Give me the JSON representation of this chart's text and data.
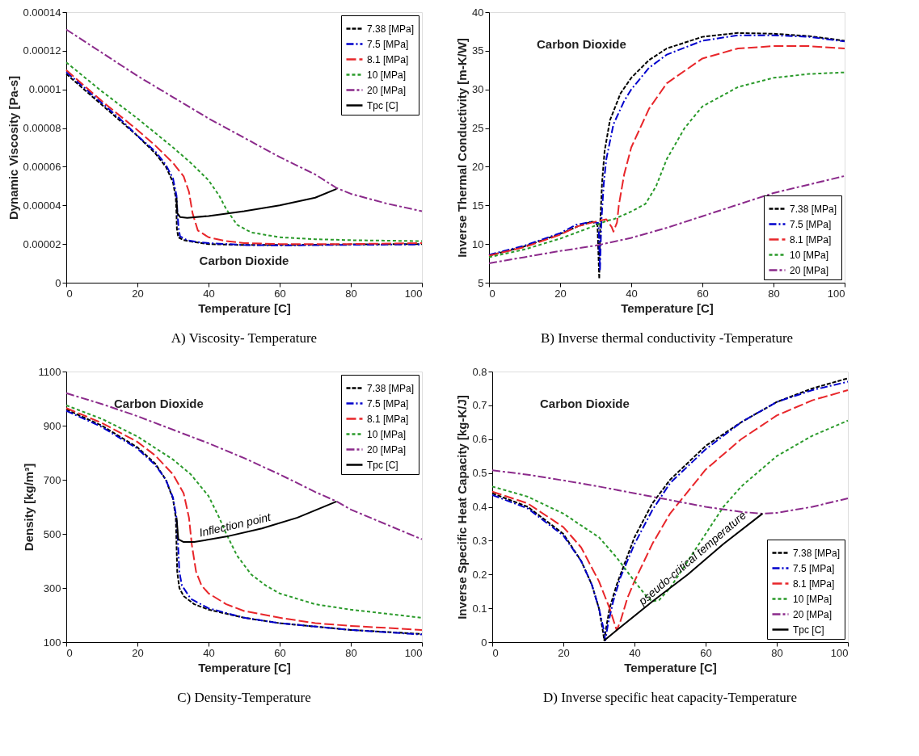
{
  "chart_data": [
    {
      "type": "line",
      "title": "A) Viscosity- Temperature",
      "xlabel": "Temperature  [C]",
      "ylabel": "Dynamic Viscosity [Pa-s]",
      "xlim": [
        0,
        100
      ],
      "xticks": [
        0,
        20,
        40,
        60,
        80,
        100
      ],
      "ylim": [
        0,
        0.00014
      ],
      "yticks": [
        0,
        {
          "value": 2e-05,
          "label": "0.00002"
        },
        {
          "value": 4e-05,
          "label": "0.00004"
        },
        {
          "value": 6e-05,
          "label": "0.00006"
        },
        {
          "value": 8e-05,
          "label": "0.00008"
        },
        0.0001,
        0.00012,
        0.00014
      ],
      "legend": "top right",
      "annotations": [
        "Carbon Dioxide"
      ],
      "series": [
        {
          "name": "7.38 [MPa]",
          "color": "#000000",
          "line_style": "dashed",
          "x": [
            0,
            5,
            10,
            15,
            20,
            25,
            28,
            30,
            30.8,
            31,
            31.1,
            31.5,
            33,
            36,
            40,
            50,
            60,
            80,
            100
          ],
          "values": [
            0.000108,
            0.0001,
            9.2e-05,
            8.4e-05,
            7.6e-05,
            6.7e-05,
            6e-05,
            5.2e-05,
            4.4e-05,
            3.5e-05,
            2.8e-05,
            2.35e-05,
            2.2e-05,
            2.1e-05,
            2e-05,
            1.95e-05,
            1.95e-05,
            1.98e-05,
            2e-05
          ]
        },
        {
          "name": "7.5 [MPa]",
          "color": "#0000cc",
          "line_style": "dashed",
          "x": [
            0,
            5,
            10,
            15,
            20,
            25,
            28,
            30,
            31,
            31.3,
            31.6,
            32,
            34,
            37,
            40,
            50,
            60,
            80,
            100
          ],
          "values": [
            0.000109,
            0.000101,
            9.3e-05,
            8.5e-05,
            7.6e-05,
            6.8e-05,
            6.1e-05,
            5.4e-05,
            4.5e-05,
            3.5e-05,
            2.8e-05,
            2.4e-05,
            2.2e-05,
            2.1e-05,
            2.05e-05,
            1.95e-05,
            1.93e-05,
            1.96e-05,
            1.98e-05
          ]
        },
        {
          "name": "8.1 [MPa]",
          "color": "#e8262a",
          "line_style": "dashed",
          "x": [
            0,
            10,
            20,
            25,
            30,
            33,
            34.5,
            35.5,
            37,
            40,
            45,
            50,
            60,
            80,
            100
          ],
          "values": [
            0.00011,
            9.4e-05,
            7.9e-05,
            7.1e-05,
            6.2e-05,
            5.5e-05,
            4.7e-05,
            3.6e-05,
            2.7e-05,
            2.35e-05,
            2.15e-05,
            2.05e-05,
            2e-05,
            2e-05,
            2.05e-05
          ]
        },
        {
          "name": "10 [MPa]",
          "color": "#2a9a2a",
          "line_style": "dashed",
          "x": [
            0,
            10,
            20,
            30,
            35,
            40,
            43,
            45,
            48,
            52,
            60,
            70,
            80,
            100
          ],
          "values": [
            0.000114,
            9.9e-05,
            8.5e-05,
            7e-05,
            6.2e-05,
            5.3e-05,
            4.5e-05,
            3.8e-05,
            3e-05,
            2.6e-05,
            2.35e-05,
            2.25e-05,
            2.2e-05,
            2.15e-05
          ]
        },
        {
          "name": "20 [MPa]",
          "color": "#8b2a8b",
          "line_style": "dashed",
          "x": [
            0,
            10,
            20,
            30,
            40,
            50,
            60,
            70,
            76,
            80,
            90,
            100
          ],
          "values": [
            0.000131,
            0.000119,
            0.000107,
            9.6e-05,
            8.5e-05,
            7.5e-05,
            6.5e-05,
            5.6e-05,
            4.9e-05,
            4.6e-05,
            4.1e-05,
            3.7e-05
          ]
        },
        {
          "name": "Tpc [C]",
          "color": "#000000",
          "line_style": "solid",
          "x": [
            31,
            31.2,
            32,
            34,
            40,
            50,
            60,
            70,
            76
          ],
          "values": [
            4.4e-05,
            3.6e-05,
            3.4e-05,
            3.35e-05,
            3.45e-05,
            3.7e-05,
            4e-05,
            4.4e-05,
            4.85e-05
          ]
        }
      ]
    },
    {
      "type": "line",
      "title": "B) Inverse thermal conductivity -Temperature",
      "xlabel": "Temperature  [C]",
      "ylabel": "Inverse Thermal Conductivity [m-K/W]",
      "xlim": [
        0,
        100
      ],
      "xticks": [
        0,
        20,
        40,
        60,
        80,
        100
      ],
      "ylim": [
        5,
        40
      ],
      "yticks": [
        5,
        10,
        15,
        20,
        25,
        30,
        35,
        40
      ],
      "legend": "bottom right",
      "annotations": [
        "Carbon Dioxide"
      ],
      "series": [
        {
          "name": "7.38 [MPa]",
          "color": "#000000",
          "line_style": "dashed",
          "x": [
            0,
            10,
            20,
            25,
            29,
            30.5,
            31,
            31.3,
            31.8,
            32.5,
            34,
            37,
            40,
            45,
            50,
            60,
            70,
            80,
            90,
            100
          ],
          "values": [
            8.5,
            9.7,
            11.3,
            12.3,
            12.9,
            12.5,
            5.5,
            13,
            18,
            22,
            26,
            29.5,
            31.5,
            33.8,
            35.3,
            36.8,
            37.3,
            37.2,
            36.9,
            36.3
          ]
        },
        {
          "name": "7.5 [MPa]",
          "color": "#0000cc",
          "line_style": "dashed",
          "x": [
            0,
            10,
            20,
            24.5,
            29,
            30.8,
            31.2,
            31.6,
            32.3,
            33,
            35,
            38,
            40,
            45,
            50,
            60,
            70,
            80,
            90,
            100
          ],
          "values": [
            8.6,
            9.8,
            11.4,
            12.5,
            12.9,
            12.7,
            6.5,
            13,
            18,
            21,
            25.5,
            28.5,
            30,
            32.8,
            34.5,
            36.3,
            37,
            37,
            36.8,
            36.2
          ]
        },
        {
          "name": "8.1 [MPa]",
          "color": "#e8262a",
          "line_style": "dashed",
          "x": [
            0,
            10,
            20,
            25,
            30,
            33,
            34.5,
            35,
            36,
            36.5,
            38,
            40,
            45,
            50,
            60,
            70,
            80,
            90,
            100
          ],
          "values": [
            8.5,
            9.6,
            11.2,
            12.3,
            12.9,
            13.2,
            12.2,
            11.6,
            12.8,
            15,
            19,
            22.5,
            27.5,
            30.8,
            34,
            35.3,
            35.6,
            35.6,
            35.3
          ]
        },
        {
          "name": "10 [MPa]",
          "color": "#2a9a2a",
          "line_style": "dashed",
          "x": [
            0,
            10,
            20,
            30,
            33,
            35,
            40,
            44,
            47,
            50,
            55,
            60,
            70,
            80,
            90,
            100
          ],
          "values": [
            8.3,
            9.3,
            10.7,
            12.4,
            13,
            13.2,
            14.2,
            15.2,
            17.5,
            21,
            25,
            27.8,
            30.3,
            31.5,
            32,
            32.2
          ]
        },
        {
          "name": "20 [MPa]",
          "color": "#8b2a8b",
          "line_style": "dashed",
          "x": [
            0,
            10,
            20,
            30,
            40,
            50,
            60,
            70,
            80,
            90,
            100
          ],
          "values": [
            7.5,
            8.3,
            9.1,
            9.8,
            10.8,
            12.1,
            13.6,
            15.1,
            16.6,
            17.7,
            18.8
          ]
        }
      ]
    },
    {
      "type": "line",
      "title": "C) Density-Temperature",
      "xlabel": "Temperature  [C]",
      "ylabel": "Density [kg/m³]",
      "xlim": [
        0,
        100
      ],
      "xticks": [
        0,
        20,
        40,
        60,
        80,
        100
      ],
      "ylim": [
        100,
        1100
      ],
      "yticks": [
        100,
        300,
        500,
        700,
        900,
        1100
      ],
      "legend": "top right",
      "annotations": [
        "Carbon Dioxide",
        {
          "text": "Inflection point",
          "x": 48,
          "y": 499
        }
      ],
      "series": [
        {
          "name": "7.38 [MPa]",
          "color": "#000000",
          "line_style": "dashed",
          "x": [
            0,
            10,
            20,
            25,
            28,
            30,
            30.8,
            31,
            31.2,
            31.8,
            33,
            36,
            40,
            50,
            60,
            80,
            100
          ],
          "values": [
            960,
            900,
            820,
            760,
            700,
            630,
            560,
            460,
            360,
            300,
            270,
            240,
            220,
            190,
            170,
            145,
            130
          ]
        },
        {
          "name": "7.5 [MPa]",
          "color": "#0000cc",
          "line_style": "dashed",
          "x": [
            0,
            10,
            20,
            25,
            28,
            30,
            31,
            31.4,
            31.8,
            32.5,
            35,
            40,
            50,
            60,
            80,
            100
          ],
          "values": [
            955,
            895,
            815,
            755,
            700,
            635,
            560,
            470,
            360,
            310,
            260,
            225,
            190,
            170,
            145,
            128
          ]
        },
        {
          "name": "8.1 [MPa]",
          "color": "#e8262a",
          "line_style": "dashed",
          "x": [
            0,
            10,
            20,
            25,
            30,
            33,
            34.5,
            35.3,
            36.5,
            38,
            40,
            45,
            50,
            60,
            70,
            80,
            100
          ],
          "values": [
            965,
            910,
            840,
            790,
            720,
            650,
            560,
            460,
            360,
            310,
            280,
            240,
            215,
            190,
            170,
            160,
            145
          ]
        },
        {
          "name": "10 [MPa]",
          "color": "#2a9a2a",
          "line_style": "dashed",
          "x": [
            0,
            10,
            20,
            30,
            35,
            40,
            43,
            45,
            48,
            52,
            56,
            60,
            70,
            80,
            90,
            100
          ],
          "values": [
            975,
            925,
            860,
            775,
            720,
            640,
            560,
            500,
            420,
            350,
            310,
            280,
            240,
            220,
            205,
            190
          ]
        },
        {
          "name": "20 [MPa]",
          "color": "#8b2a8b",
          "line_style": "dashed",
          "x": [
            0,
            10,
            20,
            30,
            40,
            50,
            60,
            70,
            76,
            80,
            90,
            100
          ],
          "values": [
            1020,
            980,
            935,
            885,
            835,
            780,
            720,
            655,
            620,
            590,
            535,
            480
          ]
        },
        {
          "name": "Tpc [C]",
          "color": "#000000",
          "line_style": "solid",
          "x": [
            31,
            31.5,
            33,
            36,
            45,
            55,
            65,
            76
          ],
          "values": [
            560,
            480,
            470,
            470,
            490,
            520,
            560,
            620
          ]
        }
      ]
    },
    {
      "type": "line",
      "title": "D) Inverse specific heat capacity-Temperature",
      "xlabel": "Temperature  [C]",
      "ylabel": "Inverse Specific Heat Capacity [kg-K/J]",
      "xlim": [
        0,
        100
      ],
      "xticks": [
        0,
        20,
        40,
        60,
        80,
        100
      ],
      "ylim": [
        0,
        0.8
      ],
      "yticks": [
        0,
        0.1,
        0.2,
        0.3,
        0.4,
        0.5,
        0.6,
        0.7,
        0.8
      ],
      "legend": "bottom right",
      "annotations": [
        "Carbon Dioxide",
        {
          "text": "pseudo-critical temperature",
          "x": 58,
          "y": 0.227
        }
      ],
      "series": [
        {
          "name": "7.38 [MPa]",
          "color": "#000000",
          "line_style": "dashed",
          "x": [
            0,
            10,
            20,
            25,
            28,
            30,
            31,
            31.5,
            32,
            33,
            35,
            40,
            45,
            50,
            60,
            70,
            80,
            90,
            100
          ],
          "values": [
            0.44,
            0.4,
            0.32,
            0.24,
            0.17,
            0.1,
            0.04,
            0.005,
            0.04,
            0.1,
            0.17,
            0.31,
            0.41,
            0.48,
            0.58,
            0.65,
            0.71,
            0.75,
            0.78
          ]
        },
        {
          "name": "7.5 [MPa]",
          "color": "#0000cc",
          "line_style": "dashed",
          "x": [
            0,
            10,
            20,
            25,
            28,
            30,
            31.3,
            31.8,
            32.5,
            34,
            36,
            40,
            45,
            50,
            60,
            70,
            80,
            90,
            100
          ],
          "values": [
            0.435,
            0.395,
            0.315,
            0.24,
            0.17,
            0.1,
            0.04,
            0.005,
            0.05,
            0.12,
            0.19,
            0.29,
            0.39,
            0.47,
            0.57,
            0.65,
            0.71,
            0.745,
            0.77
          ]
        },
        {
          "name": "8.1 [MPa]",
          "color": "#e8262a",
          "line_style": "dashed",
          "x": [
            0,
            10,
            20,
            25,
            30,
            33,
            35,
            36,
            38,
            40,
            45,
            50,
            60,
            70,
            80,
            90,
            100
          ],
          "values": [
            0.445,
            0.41,
            0.34,
            0.28,
            0.18,
            0.1,
            0.035,
            0.06,
            0.13,
            0.18,
            0.29,
            0.38,
            0.51,
            0.6,
            0.67,
            0.715,
            0.745
          ]
        },
        {
          "name": "10 [MPa]",
          "color": "#2a9a2a",
          "line_style": "dashed",
          "x": [
            0,
            10,
            20,
            30,
            35,
            40,
            43,
            45,
            47,
            50,
            55,
            60,
            65,
            70,
            80,
            90,
            100
          ],
          "values": [
            0.46,
            0.43,
            0.38,
            0.31,
            0.25,
            0.18,
            0.14,
            0.12,
            0.125,
            0.16,
            0.24,
            0.32,
            0.4,
            0.46,
            0.55,
            0.61,
            0.655
          ]
        },
        {
          "name": "20 [MPa]",
          "color": "#8b2a8b",
          "line_style": "dashed",
          "x": [
            0,
            10,
            20,
            30,
            40,
            50,
            60,
            70,
            76,
            80,
            90,
            100
          ],
          "values": [
            0.508,
            0.495,
            0.478,
            0.46,
            0.44,
            0.42,
            0.4,
            0.385,
            0.38,
            0.382,
            0.4,
            0.425
          ]
        },
        {
          "name": "Tpc [C]",
          "color": "#000000",
          "line_style": "solid",
          "x": [
            31.5,
            35,
            45,
            55,
            65,
            76
          ],
          "values": [
            0.005,
            0.035,
            0.12,
            0.2,
            0.29,
            0.38
          ]
        }
      ]
    }
  ]
}
